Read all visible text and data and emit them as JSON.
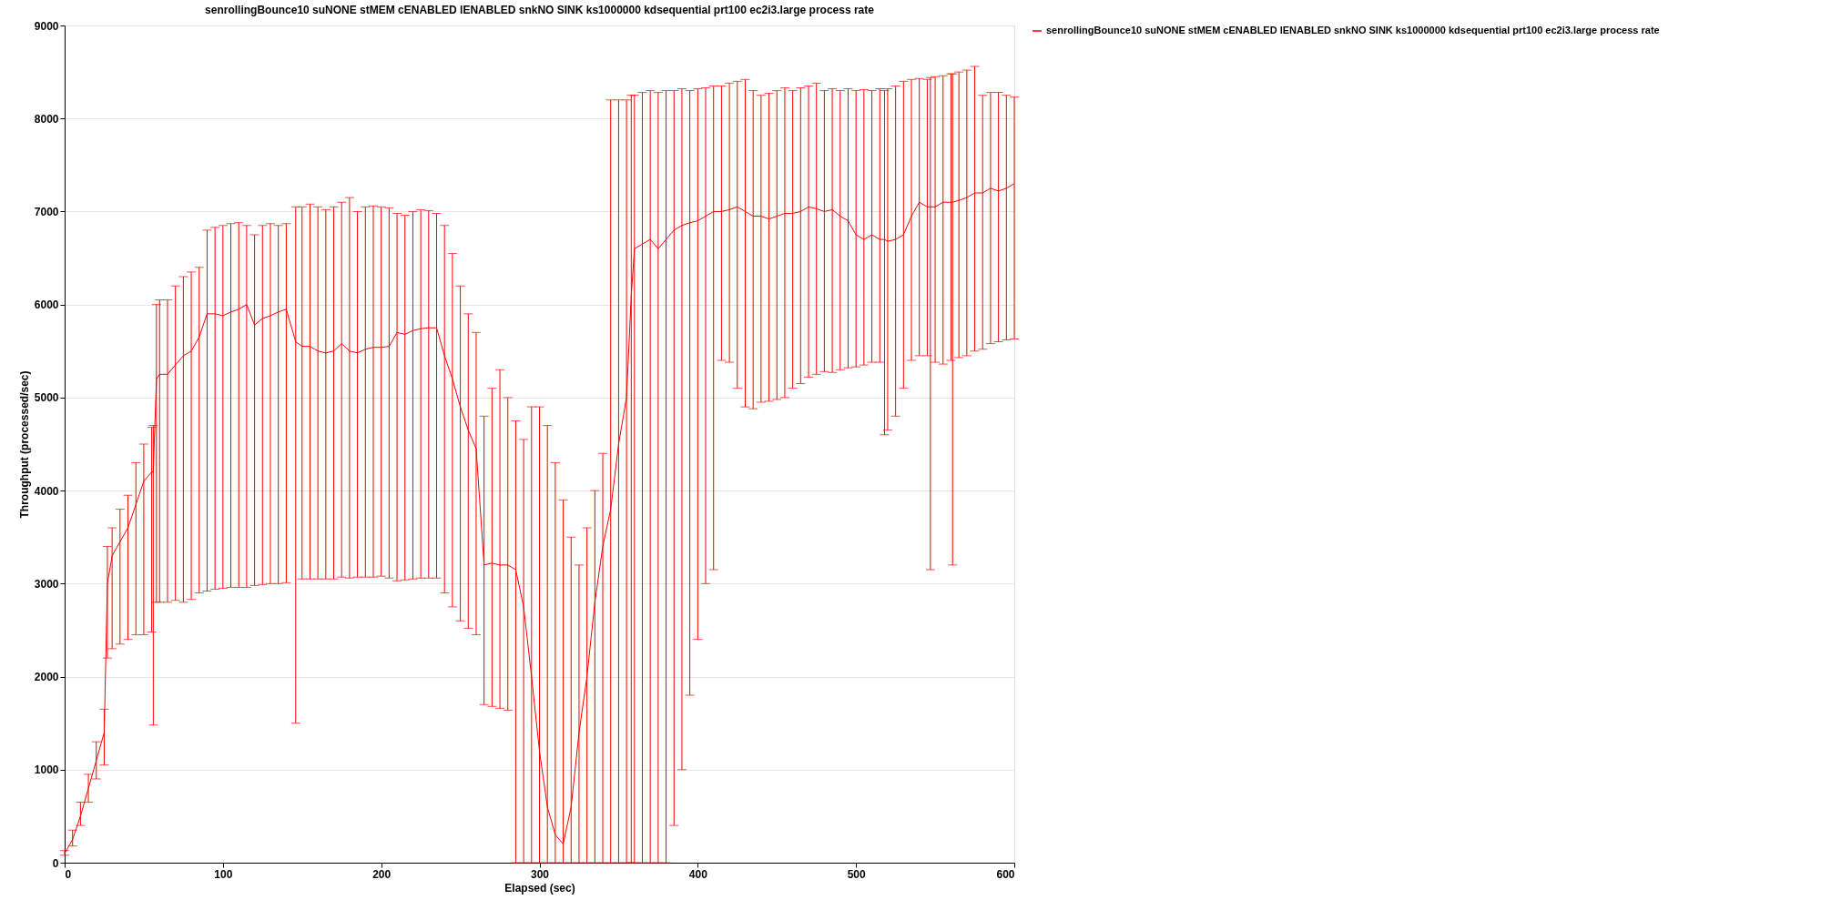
{
  "chart_data": {
    "type": "line",
    "title": "senrollingBounce10 suNONE stMEM cENABLED lENABLED snkNO SINK ks1000000 kdsequential prt100 ec2i3.large process rate",
    "xlabel": "Elapsed (sec)",
    "ylabel": "Throughput (processed/sec)",
    "xlim": [
      0,
      600
    ],
    "xticks": [
      0,
      100,
      200,
      300,
      400,
      500,
      600
    ],
    "ylim": [
      0,
      9000
    ],
    "yticks": [
      0,
      1000,
      2000,
      3000,
      4000,
      5000,
      6000,
      7000,
      8000,
      9000
    ],
    "grid": "y",
    "legend": "top right",
    "marker": "none",
    "line_style": "solid",
    "x": [
      0,
      5,
      10,
      15,
      20,
      25,
      27,
      30,
      35,
      40,
      45,
      50,
      55,
      56,
      58,
      60,
      65,
      70,
      75,
      80,
      85,
      90,
      95,
      100,
      105,
      110,
      115,
      120,
      125,
      130,
      135,
      140,
      146,
      150,
      155,
      160,
      165,
      170,
      175,
      180,
      185,
      190,
      195,
      200,
      205,
      210,
      215,
      220,
      225,
      230,
      235,
      240,
      245,
      250,
      255,
      260,
      265,
      270,
      275,
      280,
      285,
      290,
      295,
      300,
      305,
      310,
      315,
      320,
      325,
      330,
      335,
      340,
      345,
      350,
      355,
      358,
      360,
      365,
      370,
      375,
      380,
      385,
      390,
      395,
      400,
      405,
      410,
      415,
      420,
      425,
      430,
      435,
      440,
      445,
      450,
      455,
      460,
      465,
      470,
      475,
      480,
      485,
      490,
      495,
      500,
      505,
      510,
      515,
      518,
      520,
      525,
      530,
      535,
      540,
      545,
      547,
      550,
      555,
      560,
      561,
      565,
      570,
      575,
      580,
      585,
      590,
      595,
      600
    ],
    "series": [
      {
        "name": "senrollingBounce10 suNONE stMEM cENABLED lENABLED snkNO SINK ks1000000 kdsequential prt100 ec2i3.large process rate",
        "color": "#ff0000",
        "values": [
          100,
          250,
          500,
          800,
          1100,
          1400,
          3000,
          3300,
          3450,
          3600,
          3850,
          4100,
          4200,
          4200,
          5200,
          5250,
          5250,
          5350,
          5450,
          5500,
          5650,
          5900,
          5900,
          5880,
          5920,
          5950,
          6000,
          5780,
          5850,
          5880,
          5920,
          5950,
          5600,
          5550,
          5550,
          5500,
          5480,
          5500,
          5580,
          5500,
          5480,
          5520,
          5540,
          5540,
          5550,
          5700,
          5680,
          5720,
          5740,
          5750,
          5750,
          5450,
          5200,
          4900,
          4650,
          4450,
          3200,
          3220,
          3200,
          3200,
          3150,
          2750,
          2000,
          1200,
          600,
          300,
          200,
          600,
          1400,
          2000,
          2800,
          3400,
          3800,
          4500,
          5000,
          6100,
          6600,
          6650,
          6700,
          6600,
          6700,
          6800,
          6850,
          6880,
          6900,
          6950,
          7000,
          7000,
          7020,
          7050,
          7000,
          6950,
          6950,
          6920,
          6950,
          6980,
          6980,
          7000,
          7050,
          7030,
          7000,
          7020,
          6950,
          6900,
          6750,
          6700,
          6750,
          6700,
          6700,
          6680,
          6700,
          6750,
          6950,
          7100,
          7050,
          7050,
          7050,
          7100,
          7100,
          7100,
          7120,
          7150,
          7200,
          7200,
          7250,
          7220,
          7250,
          7300
        ],
        "errors": [
          [
            80,
            130
          ],
          [
            180,
            350
          ],
          [
            400,
            650
          ],
          [
            650,
            950
          ],
          [
            900,
            1300
          ],
          [
            1050,
            1650
          ],
          [
            2200,
            3400
          ],
          [
            2300,
            3600
          ],
          [
            2350,
            3800
          ],
          [
            2400,
            3950
          ],
          [
            2450,
            4300
          ],
          [
            2450,
            4500
          ],
          [
            2480,
            4680
          ],
          [
            1480,
            4700
          ],
          [
            2800,
            6000
          ],
          [
            2800,
            6050
          ],
          [
            2800,
            6050
          ],
          [
            2820,
            6200
          ],
          [
            2800,
            6300
          ],
          [
            2830,
            6350
          ],
          [
            2900,
            6400
          ],
          [
            2920,
            6800
          ],
          [
            2940,
            6830
          ],
          [
            2950,
            6850
          ],
          [
            2960,
            6870
          ],
          [
            2960,
            6880
          ],
          [
            2960,
            6850
          ],
          [
            2980,
            6750
          ],
          [
            2990,
            6850
          ],
          [
            3000,
            6870
          ],
          [
            3000,
            6850
          ],
          [
            3010,
            6870
          ],
          [
            1500,
            7050
          ],
          [
            3050,
            7050
          ],
          [
            3050,
            7080
          ],
          [
            3050,
            7050
          ],
          [
            3050,
            7020
          ],
          [
            3050,
            7050
          ],
          [
            3070,
            7100
          ],
          [
            3060,
            7150
          ],
          [
            3070,
            7000
          ],
          [
            3070,
            7050
          ],
          [
            3070,
            7060
          ],
          [
            3080,
            7050
          ],
          [
            3060,
            7040
          ],
          [
            3030,
            6980
          ],
          [
            3040,
            6960
          ],
          [
            3050,
            7000
          ],
          [
            3060,
            7020
          ],
          [
            3060,
            7010
          ],
          [
            3060,
            6980
          ],
          [
            2900,
            6850
          ],
          [
            2750,
            6550
          ],
          [
            2600,
            6200
          ],
          [
            2520,
            5900
          ],
          [
            2450,
            5700
          ],
          [
            1700,
            4800
          ],
          [
            1680,
            5100
          ],
          [
            1660,
            5300
          ],
          [
            1640,
            5000
          ],
          [
            0,
            4750
          ],
          [
            0,
            4550
          ],
          [
            0,
            4900
          ],
          [
            0,
            4900
          ],
          [
            0,
            4700
          ],
          [
            0,
            4300
          ],
          [
            0,
            3900
          ],
          [
            0,
            3500
          ],
          [
            0,
            3200
          ],
          [
            0,
            3600
          ],
          [
            0,
            4000
          ],
          [
            0,
            4400
          ],
          [
            0,
            8200
          ],
          [
            0,
            8200
          ],
          [
            0,
            8200
          ],
          [
            0,
            8250
          ],
          [
            0,
            8250
          ],
          [
            0,
            8280
          ],
          [
            0,
            8300
          ],
          [
            0,
            8280
          ],
          [
            0,
            8300
          ],
          [
            400,
            8300
          ],
          [
            1000,
            8320
          ],
          [
            1800,
            8300
          ],
          [
            2400,
            8320
          ],
          [
            3000,
            8330
          ],
          [
            3150,
            8350
          ],
          [
            5400,
            8350
          ],
          [
            5380,
            8380
          ],
          [
            5100,
            8400
          ],
          [
            4900,
            8420
          ],
          [
            4880,
            8300
          ],
          [
            4950,
            8250
          ],
          [
            4960,
            8270
          ],
          [
            4980,
            8300
          ],
          [
            5000,
            8330
          ],
          [
            5100,
            8300
          ],
          [
            5150,
            8330
          ],
          [
            5220,
            8350
          ],
          [
            5250,
            8380
          ],
          [
            5280,
            8300
          ],
          [
            5270,
            8320
          ],
          [
            5300,
            8300
          ],
          [
            5320,
            8320
          ],
          [
            5330,
            8300
          ],
          [
            5350,
            8310
          ],
          [
            5380,
            8300
          ],
          [
            5380,
            8320
          ],
          [
            4600,
            8300
          ],
          [
            4650,
            8320
          ],
          [
            4800,
            8350
          ],
          [
            5100,
            8400
          ],
          [
            5400,
            8420
          ],
          [
            5450,
            8430
          ],
          [
            5450,
            8420
          ],
          [
            3150,
            8440
          ],
          [
            5380,
            8450
          ],
          [
            5360,
            8460
          ],
          [
            5400,
            8480
          ],
          [
            3200,
            8480
          ],
          [
            5430,
            8500
          ],
          [
            5450,
            8520
          ],
          [
            5500,
            8560
          ],
          [
            5520,
            8250
          ],
          [
            5580,
            8280
          ],
          [
            5600,
            8280
          ],
          [
            5620,
            8250
          ],
          [
            5630,
            8230
          ]
        ]
      }
    ]
  }
}
